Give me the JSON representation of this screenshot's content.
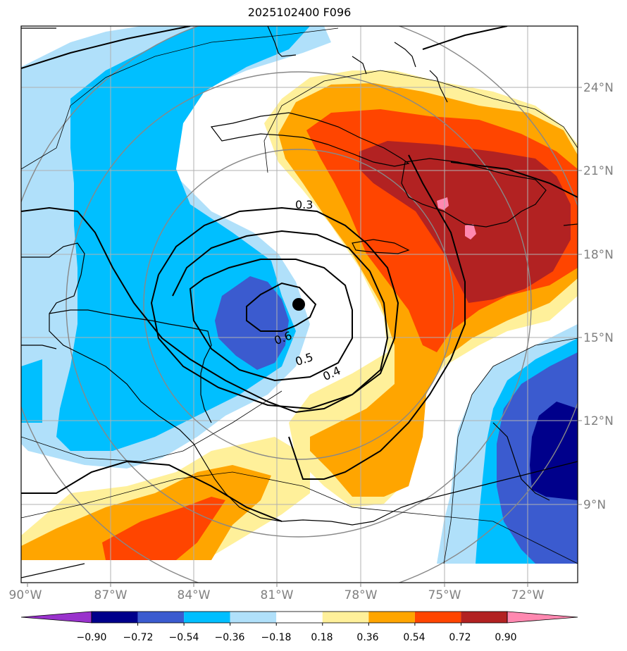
{
  "title": "2025102400 F096",
  "axes": {
    "lon_labels": [
      "90°W",
      "87°W",
      "84°W",
      "81°W",
      "78°W",
      "75°W",
      "72°W"
    ],
    "lat_labels": [
      "24°N",
      "21°N",
      "18°N",
      "15°N",
      "12°N",
      "9°N"
    ],
    "label_color": "#808080",
    "grid": true
  },
  "colorbar": {
    "ticks": [
      "−0.90",
      "−0.72",
      "−0.54",
      "−0.36",
      "−0.18",
      "0.18",
      "0.36",
      "0.54",
      "0.72",
      "0.90"
    ],
    "colors": [
      "#9932cc",
      "#00008b",
      "#3b5bcf",
      "#00bfff",
      "#b0e0fa",
      "#ffffff",
      "#fff09a",
      "#ffa500",
      "#ff4500",
      "#b22222",
      "#ff88b0"
    ],
    "extend": "both"
  },
  "contours": {
    "labels": [
      "0.3",
      "0.4",
      "0.5",
      "0.6"
    ]
  },
  "storm_marker": {
    "lon": -80.0,
    "lat": 16.2
  }
}
